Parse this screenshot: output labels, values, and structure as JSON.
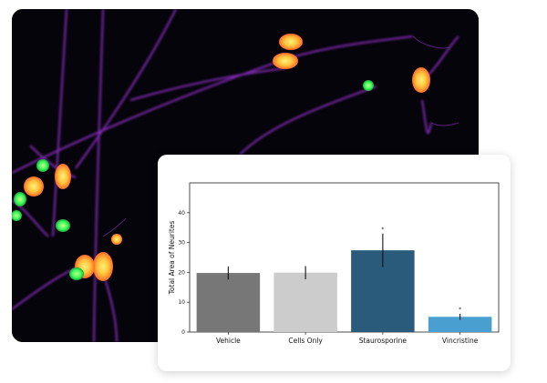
{
  "colors": {
    "vehicle": "#777777",
    "cells_only": "#cccccc",
    "staurosporine": "#2b5b7a",
    "vincristine": "#4a9fd1",
    "neurite": "#8a2fc0",
    "soma": "#ff9a3c",
    "nucleus_green": "#3cff5a"
  },
  "image": {
    "description_icon": "neuron-fluorescence-micrograph"
  },
  "chart_data": {
    "type": "bar",
    "title": "",
    "xlabel": "",
    "ylabel": "Total Area of Neurites",
    "ylim": [
      0,
      50
    ],
    "yticks": [
      0,
      10,
      20,
      30,
      40
    ],
    "categories": [
      "Vehicle",
      "Cells Only",
      "Staurosporine",
      "Vincristine"
    ],
    "values": [
      19.8,
      19.9,
      27.4,
      5.1
    ],
    "errors": [
      2.2,
      2.2,
      5.6,
      1.0
    ],
    "significance_markers": [
      "",
      "",
      "*",
      "*"
    ],
    "grid": false
  }
}
